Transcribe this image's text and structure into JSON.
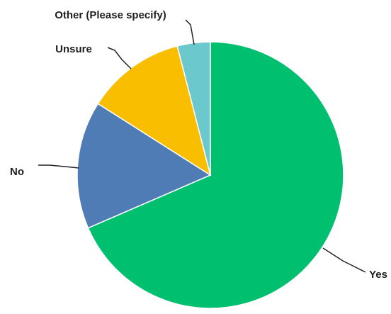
{
  "chart_data": {
    "type": "pie",
    "title": "",
    "categories": [
      "Yes",
      "No",
      "Unsure",
      "Other (Please specify)"
    ],
    "values": [
      68.5,
      15.5,
      12.0,
      4.0
    ],
    "value_unit": "%",
    "colors": [
      "#00BF6F",
      "#507CB6",
      "#F9BE00",
      "#6BC8CD"
    ],
    "start_angle_deg": 0,
    "direction": "clockwise",
    "legend": "none",
    "labels_outside_with_leader_lines": true
  }
}
